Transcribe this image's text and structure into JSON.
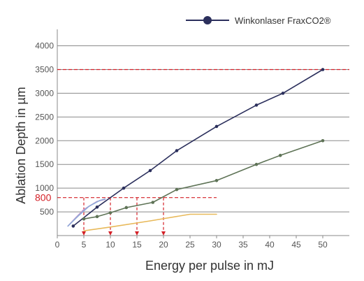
{
  "chart_data": {
    "type": "line",
    "title": "",
    "xlabel": "Energy per pulse in mJ",
    "ylabel": "Ablation Depth in µm",
    "xlim": [
      0,
      55
    ],
    "ylim": [
      0,
      4200
    ],
    "x_ticks": [
      0,
      5,
      10,
      15,
      20,
      25,
      30,
      35,
      40,
      45,
      50
    ],
    "y_ticks": [
      500,
      1000,
      1500,
      2000,
      2500,
      3000,
      3500,
      4000
    ],
    "grid": "horizontal",
    "legend_position": "top-right",
    "series": [
      {
        "name": "Winkonlaser FraxCO2®",
        "color": "#2b2f5c",
        "marker": true,
        "points": [
          [
            3,
            200
          ],
          [
            7.5,
            600
          ],
          [
            12.5,
            1000
          ],
          [
            17.5,
            1370
          ],
          [
            22.5,
            1790
          ],
          [
            30,
            2300
          ],
          [
            37.5,
            2750
          ],
          [
            42.5,
            3000
          ],
          [
            50,
            3500
          ]
        ]
      },
      {
        "color": "#5e7356",
        "marker": true,
        "points": [
          [
            5,
            350
          ],
          [
            7.5,
            400
          ],
          [
            10,
            480
          ],
          [
            13,
            590
          ],
          [
            18,
            700
          ],
          [
            22.5,
            970
          ],
          [
            30,
            1160
          ],
          [
            37.5,
            1500
          ],
          [
            42,
            1690
          ],
          [
            50,
            2000
          ]
        ]
      },
      {
        "color": "#e8b95a",
        "marker": false,
        "points": [
          [
            5,
            100
          ],
          [
            10,
            180
          ],
          [
            17.5,
            310
          ],
          [
            25,
            450
          ],
          [
            30,
            450
          ]
        ]
      },
      {
        "color": "#c49acd",
        "marker": false,
        "points": [
          [
            2,
            200
          ],
          [
            3.5,
            380
          ],
          [
            5,
            550
          ],
          [
            7.5,
            720
          ],
          [
            9,
            760
          ]
        ]
      },
      {
        "color": "#8fa9d9",
        "marker": false,
        "points": [
          [
            2,
            200
          ],
          [
            4,
            420
          ],
          [
            6,
            620
          ],
          [
            8,
            740
          ],
          [
            9,
            770
          ]
        ]
      }
    ],
    "reference_lines": {
      "color": "#d42027",
      "y_lines": [
        {
          "y": 3500,
          "x_from": 0,
          "x_to": 55
        },
        {
          "y": 800,
          "x_from": 0,
          "x_to": 30
        }
      ],
      "y_label": "800",
      "x_drops": [
        5,
        10,
        15,
        20
      ]
    }
  }
}
